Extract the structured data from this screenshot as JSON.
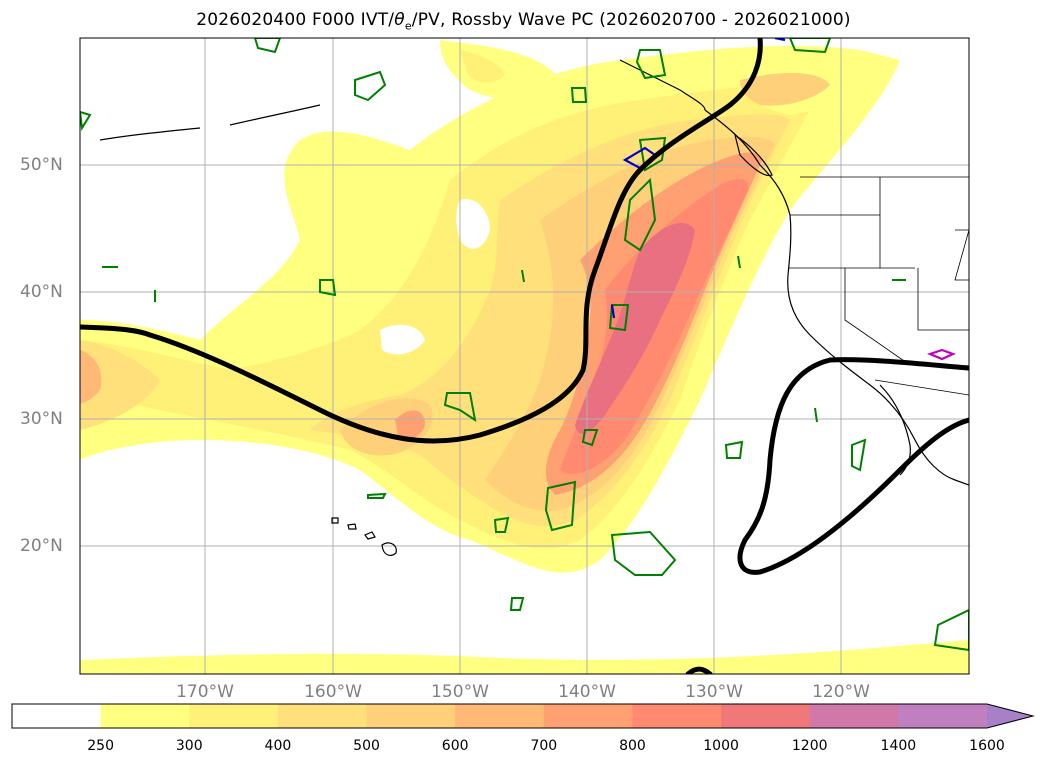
{
  "title_prefix": "2026020400 F000 IVT/",
  "title_theta": "θ",
  "title_sub": "e",
  "title_suffix": "/PV, Rossby Wave PC (2026020700 - 2026021000)",
  "lat_labels": [
    "50°N",
    "40°N",
    "30°N",
    "20°N"
  ],
  "lon_labels": [
    "170°W",
    "160°W",
    "150°W",
    "140°W",
    "130°W",
    "120°W"
  ],
  "colorbar": {
    "ticks": [
      "250",
      "300",
      "400",
      "500",
      "600",
      "700",
      "800",
      "1000",
      "1200",
      "1400",
      "1600"
    ],
    "colors": [
      "#ffffff",
      "#ffff80",
      "#fff077",
      "#ffe07a",
      "#ffd07a",
      "#ffb876",
      "#ffa072",
      "#ff8a70",
      "#f07878",
      "#d078a8",
      "#c080c0",
      "#a880c8"
    ]
  },
  "colors": {
    "ivt_low": "#ffff80",
    "ivt_mid": "#ffd07a",
    "ivt_high": "#ff8a70",
    "ivt_peak": "#e87080",
    "rossby_contour": "#000000",
    "pv_contour_green": "#008000",
    "pv_contour_blue": "#0000cc",
    "pv_contour_magenta": "#c000c0"
  }
}
